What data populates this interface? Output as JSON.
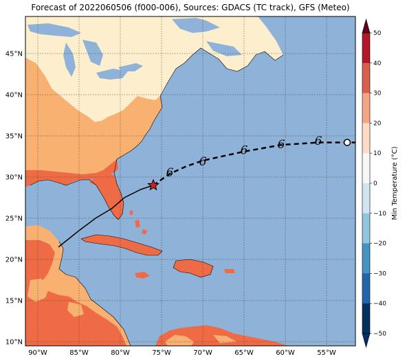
{
  "title": "Forecast of 2022060506 (f000-006), Sources: GDACS (TC track), GFS (Meteo)",
  "colorbar": {
    "label": "Min Temperature (°C)",
    "ticks": [
      "50",
      "40",
      "30",
      "20",
      "10",
      "0",
      "−10",
      "−20",
      "−30",
      "−40",
      "−50"
    ],
    "colors": [
      "#67001f",
      "#b2182b",
      "#d6604d",
      "#f4a582",
      "#fddbc7",
      "#f7f7f7",
      "#d1e5f0",
      "#92c5de",
      "#4393c3",
      "#2166ac",
      "#053061"
    ]
  },
  "axes": {
    "lat_labels": [
      "45°N",
      "40°N",
      "35°N",
      "30°N",
      "25°N",
      "20°N",
      "15°N",
      "10°N"
    ],
    "lon_labels": [
      "90°W",
      "85°W",
      "80°W",
      "75°W",
      "70°W",
      "65°W",
      "60°W",
      "55°W"
    ]
  },
  "chart_data": {
    "type": "map",
    "lon_range": [
      -91.5,
      -51.5
    ],
    "lat_range": [
      9.5,
      49.5
    ],
    "colors": {
      "ocean": "#8fb2d8",
      "cool_land": "#fdefcd",
      "mild_land": "#f8b171",
      "warm_land": "#ef6b45",
      "track": "#000000",
      "current_position": "#d32020"
    },
    "current_position": {
      "lon": -76.0,
      "lat": 29.0
    },
    "past_track": [
      [
        -87.5,
        21.5
      ],
      [
        -85.0,
        23.5
      ],
      [
        -83.0,
        25.0
      ],
      [
        -81.0,
        26.2
      ],
      [
        -79.5,
        27.5
      ],
      [
        -77.5,
        28.5
      ],
      [
        -76.0,
        29.0
      ]
    ],
    "forecast_track": [
      [
        -76.0,
        29.0
      ],
      [
        -74.0,
        30.4
      ],
      [
        -72.0,
        31.3
      ],
      [
        -70.0,
        32.0
      ],
      [
        -65.0,
        33.1
      ],
      [
        -60.5,
        33.9
      ],
      [
        -56.0,
        34.2
      ],
      [
        -52.5,
        34.2
      ],
      [
        -51.5,
        34.2
      ]
    ],
    "forecast_markers": [
      [
        -74.0,
        30.6
      ],
      [
        -70.0,
        31.9
      ],
      [
        -65.0,
        33.3
      ],
      [
        -60.5,
        34.0
      ],
      [
        -56.0,
        34.4
      ]
    ],
    "end_marker": {
      "lon": -52.5,
      "lat": 34.2
    },
    "symbol": "6"
  }
}
